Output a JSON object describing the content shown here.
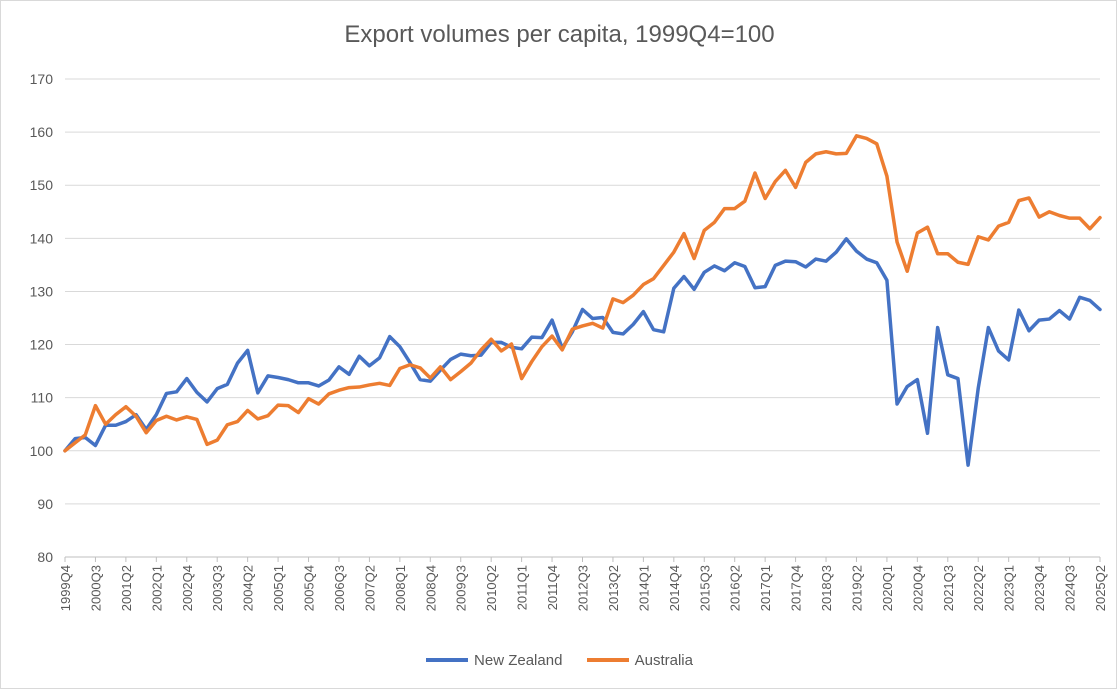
{
  "chart_data": {
    "type": "line",
    "title": "Export volumes per capita, 1999Q4=100",
    "xlabel": "",
    "ylabel": "",
    "ylim": [
      80,
      170
    ],
    "yticks": [
      80,
      90,
      100,
      110,
      120,
      130,
      140,
      150,
      160,
      170
    ],
    "grid": true,
    "legend": "bottom",
    "x": [
      "1999Q4",
      "2000Q1",
      "2000Q2",
      "2000Q3",
      "2000Q4",
      "2001Q1",
      "2001Q2",
      "2001Q3",
      "2001Q4",
      "2002Q1",
      "2002Q2",
      "2002Q3",
      "2002Q4",
      "2003Q1",
      "2003Q2",
      "2003Q3",
      "2003Q4",
      "2004Q1",
      "2004Q2",
      "2004Q3",
      "2004Q4",
      "2005Q1",
      "2005Q2",
      "2005Q3",
      "2005Q4",
      "2006Q1",
      "2006Q2",
      "2006Q3",
      "2006Q4",
      "2007Q1",
      "2007Q2",
      "2007Q3",
      "2007Q4",
      "2008Q1",
      "2008Q2",
      "2008Q3",
      "2008Q4",
      "2009Q1",
      "2009Q2",
      "2009Q3",
      "2009Q4",
      "2010Q1",
      "2010Q2",
      "2010Q3",
      "2010Q4",
      "2011Q1",
      "2011Q2",
      "2011Q3",
      "2011Q4",
      "2012Q1",
      "2012Q2",
      "2012Q3",
      "2012Q4",
      "2013Q1",
      "2013Q2",
      "2013Q3",
      "2013Q4",
      "2014Q1",
      "2014Q2",
      "2014Q3",
      "2014Q4",
      "2015Q1",
      "2015Q2",
      "2015Q3",
      "2015Q4",
      "2016Q1",
      "2016Q2",
      "2016Q3",
      "2016Q4",
      "2017Q1",
      "2017Q2",
      "2017Q3",
      "2017Q4",
      "2018Q1",
      "2018Q2",
      "2018Q3",
      "2018Q4",
      "2019Q1",
      "2019Q2",
      "2019Q3",
      "2019Q4",
      "2020Q1",
      "2020Q2",
      "2020Q3",
      "2020Q4",
      "2021Q1",
      "2021Q2",
      "2021Q3",
      "2021Q4",
      "2022Q1",
      "2022Q2",
      "2022Q3",
      "2022Q4",
      "2023Q1",
      "2023Q2",
      "2023Q3",
      "2023Q4",
      "2024Q1",
      "2024Q2",
      "2024Q3",
      "2024Q4",
      "2025Q1",
      "2025Q2"
    ],
    "xtick_labels": [
      "1999Q4",
      "2000Q3",
      "2001Q2",
      "2002Q1",
      "2002Q4",
      "2003Q3",
      "2004Q2",
      "2005Q1",
      "2005Q4",
      "2006Q3",
      "2007Q2",
      "2008Q1",
      "2008Q4",
      "2009Q3",
      "2010Q2",
      "2011Q1",
      "2011Q4",
      "2012Q3",
      "2013Q2",
      "2014Q1",
      "2014Q4",
      "2015Q3",
      "2016Q2",
      "2017Q1",
      "2017Q4",
      "2018Q3",
      "2019Q2",
      "2020Q1",
      "2020Q4",
      "2021Q3",
      "2022Q2",
      "2023Q1",
      "2023Q4",
      "2024Q3",
      "2025Q2"
    ],
    "series": [
      {
        "name": "New Zealand",
        "color": "#4472c4",
        "values": [
          100,
          102.3,
          102.5,
          101,
          104.8,
          104.8,
          105.5,
          106.8,
          104,
          106.8,
          110.8,
          111.1,
          113.6,
          111,
          109.2,
          111.7,
          112.5,
          116.5,
          118.9,
          110.9,
          114.1,
          113.8,
          113.4,
          112.8,
          112.8,
          112.2,
          113.3,
          115.8,
          114.4,
          117.8,
          116,
          117.5,
          121.5,
          119.6,
          116.6,
          113.4,
          113.1,
          115.2,
          117.2,
          118.2,
          117.9,
          118,
          120.4,
          120.4,
          119.5,
          119.2,
          121.4,
          121.3,
          124.6,
          119.3,
          122.4,
          126.6,
          124.9,
          125.1,
          122.3,
          122,
          123.8,
          126.2,
          122.8,
          122.4,
          130.6,
          132.8,
          130.4,
          133.6,
          134.8,
          133.9,
          135.4,
          134.7,
          130.7,
          130.9,
          134.9,
          135.7,
          135.6,
          134.6,
          136.1,
          135.7,
          137.4,
          139.9,
          137.6,
          136.1,
          135.4,
          132.1,
          108.8,
          112.1,
          113.4,
          103.3,
          123.2,
          114.3,
          113.6,
          97.3,
          111.8,
          123.2,
          118.8,
          117.1,
          126.5,
          122.6,
          124.6,
          124.8,
          126.4,
          124.8,
          128.9,
          128.3,
          126.6
        ]
      },
      {
        "name": "Australia",
        "color": "#ed7d31",
        "values": [
          100,
          101.5,
          103,
          108.5,
          105,
          106.8,
          108.3,
          106.5,
          103.4,
          105.7,
          106.5,
          105.8,
          106.4,
          105.9,
          101.2,
          102,
          104.9,
          105.5,
          107.6,
          106,
          106.6,
          108.6,
          108.5,
          107.2,
          109.8,
          108.8,
          110.7,
          111.4,
          111.9,
          112,
          112.4,
          112.7,
          112.3,
          115.5,
          116.2,
          115.6,
          113.7,
          115.8,
          113.4,
          114.9,
          116.5,
          119,
          121,
          118.8,
          120.1,
          113.6,
          116.8,
          119.6,
          121.6,
          119,
          122.9,
          123.5,
          124,
          123.1,
          128.6,
          127.9,
          129.3,
          131.3,
          132.4,
          134.9,
          137.4,
          140.9,
          136.2,
          141.5,
          143,
          145.6,
          145.6,
          147,
          152.3,
          147.5,
          150.7,
          152.8,
          149.6,
          154.3,
          155.9,
          156.3,
          155.9,
          156,
          159.3,
          158.8,
          157.8,
          151.7,
          139.3,
          133.8,
          141,
          142.1,
          137.1,
          137.1,
          135.5,
          135.1,
          140.3,
          139.7,
          142.3,
          143,
          147.1,
          147.6,
          144,
          145,
          144.3,
          143.8,
          143.8,
          141.8,
          143.9
        ]
      }
    ]
  }
}
